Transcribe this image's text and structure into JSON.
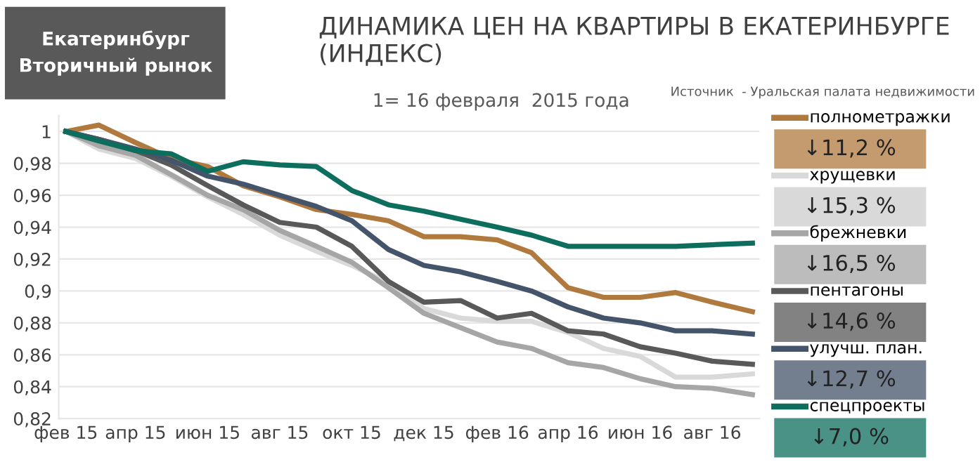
{
  "chart_data": {
    "type": "line",
    "title": "ДИНАМИКА ЦЕН НА КВАРТИРЫ В ЕКАТЕРИНБУРГЕ (ИНДЕКС)",
    "subtitle": "Екатеринбург\nВторичный рынок",
    "annotations": [
      "Источник  - Уральская палата недвижимости",
      "1= 16 февраля  2015 года",
      "↓11,2 %",
      "↓15,3 %",
      "↓16,5 %",
      "↓14,6 %",
      "↓12,7 %",
      "↓7,0 %"
    ],
    "x": [
      "2015-02-16",
      "2015-03-16",
      "2015-04-16",
      "2015-05-16",
      "2015-06-16",
      "2015-07-16",
      "2015-08-16",
      "2015-09-16",
      "2015-10-16",
      "2015-11-16",
      "2015-12-16",
      "2016-01-16",
      "2016-02-16",
      "2016-03-16",
      "2016-04-16",
      "2016-05-16",
      "2016-06-16",
      "2016-07-16",
      "2016-08-16",
      "2016-09-19"
    ],
    "series": [
      {
        "name": "полнометражки",
        "color": "#b07a3e",
        "values": [
          1,
          1.004,
          0.993,
          0.983,
          0.978,
          0.966,
          0.959,
          0.951,
          0.948,
          0.944,
          0.934,
          0.934,
          0.932,
          0.924,
          0.902,
          0.896,
          0.896,
          0.899,
          0.893,
          0.887
        ]
      },
      {
        "name": "хрущевки",
        "color": "#d9d9d9",
        "values": [
          1,
          0.989,
          0.983,
          0.972,
          0.959,
          0.948,
          0.935,
          0.925,
          0.916,
          0.905,
          0.889,
          0.883,
          0.881,
          0.881,
          0.874,
          0.864,
          0.859,
          0.846,
          0.846,
          0.848
        ]
      },
      {
        "name": "брежневки",
        "color": "#a6a6a6",
        "values": [
          1,
          0.991,
          0.985,
          0.973,
          0.96,
          0.951,
          0.938,
          0.928,
          0.918,
          0.902,
          0.886,
          0.877,
          0.868,
          0.864,
          0.855,
          0.852,
          0.845,
          0.84,
          0.839,
          0.835
        ]
      },
      {
        "name": "пентагоны",
        "color": "#595959",
        "values": [
          1,
          0.995,
          0.988,
          0.979,
          0.966,
          0.954,
          0.943,
          0.94,
          0.928,
          0.906,
          0.893,
          0.894,
          0.883,
          0.886,
          0.875,
          0.873,
          0.865,
          0.861,
          0.856,
          0.854
        ]
      },
      {
        "name": "улучш. план.",
        "color": "#44546a",
        "values": [
          1,
          0.995,
          0.989,
          0.982,
          0.972,
          0.967,
          0.96,
          0.953,
          0.944,
          0.926,
          0.916,
          0.912,
          0.906,
          0.9,
          0.89,
          0.883,
          0.88,
          0.875,
          0.875,
          0.873
        ]
      },
      {
        "name": "спецпроекты",
        "color": "#0e6e5e",
        "values": [
          1,
          0.994,
          0.988,
          0.986,
          0.975,
          0.981,
          0.979,
          0.978,
          0.963,
          0.954,
          0.95,
          0.945,
          0.94,
          0.935,
          0.928,
          0.928,
          0.928,
          0.928,
          0.929,
          0.93
        ]
      }
    ],
    "xlim": [
      "2015-02-10",
      "2016-09-25"
    ],
    "xticks": [
      {
        "value": "2015-02-16",
        "label": "фев 15"
      },
      {
        "value": "2015-04-16",
        "label": "апр 15"
      },
      {
        "value": "2015-06-16",
        "label": "июн 15"
      },
      {
        "value": "2015-08-16",
        "label": "авг 15"
      },
      {
        "value": "2015-10-16",
        "label": "окт 15"
      },
      {
        "value": "2015-12-16",
        "label": "дек 15"
      },
      {
        "value": "2016-02-16",
        "label": "фев 16"
      },
      {
        "value": "2016-04-16",
        "label": "апр 16"
      },
      {
        "value": "2016-06-16",
        "label": "июн 16"
      },
      {
        "value": "2016-08-16",
        "label": "авг 16"
      }
    ],
    "ylim": [
      0.82,
      1.01
    ],
    "yticks": [
      {
        "value": 0.82,
        "label": "0,82"
      },
      {
        "value": 0.84,
        "label": "0,84"
      },
      {
        "value": 0.86,
        "label": "0,86"
      },
      {
        "value": 0.88,
        "label": "0,88"
      },
      {
        "value": 0.9,
        "label": "0,9"
      },
      {
        "value": 0.92,
        "label": "0,92"
      },
      {
        "value": 0.94,
        "label": "0,94"
      },
      {
        "value": 0.96,
        "label": "0,96"
      },
      {
        "value": 0.98,
        "label": "0,98"
      },
      {
        "value": 1,
        "label": "1"
      }
    ],
    "grid": "y",
    "legend": "right",
    "marker": "none",
    "line_style": "solid"
  }
}
